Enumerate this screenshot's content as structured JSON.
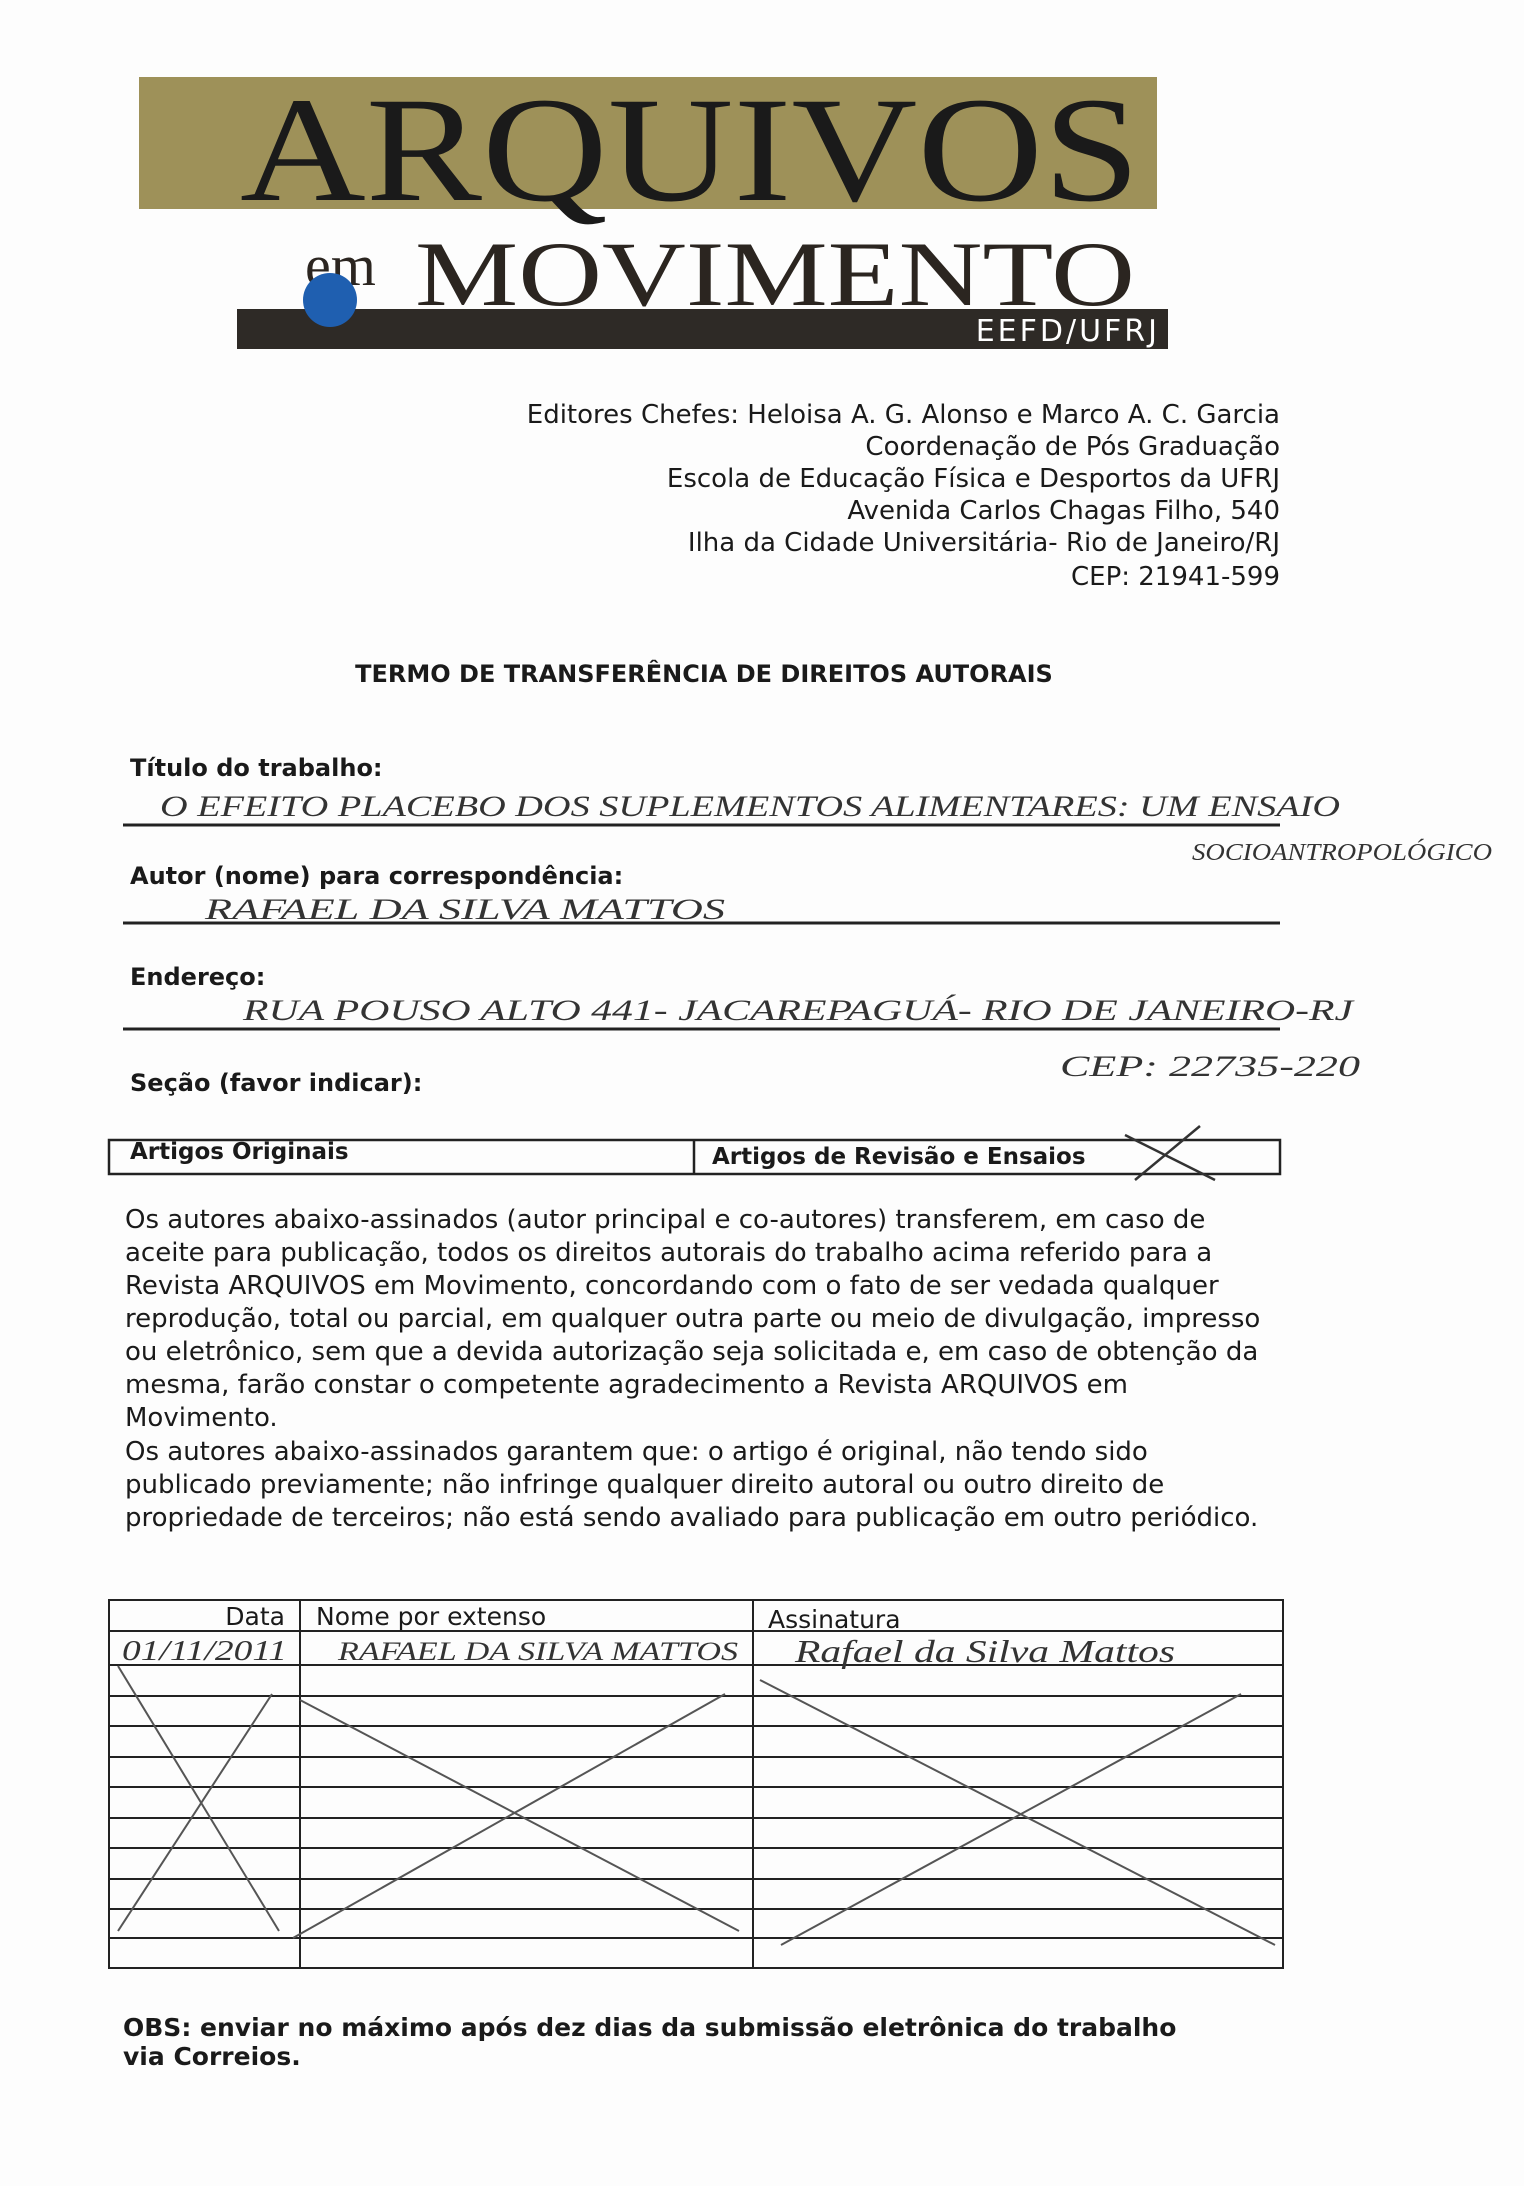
{
  "header": {
    "logo_title": "ARQUIVOS",
    "logo_prefix": "em",
    "logo_subtitle": "MOVIMENTO",
    "logo_band": "EEFD/UFRJ",
    "address_lines": [
      "Editores Chefes: Heloisa A. G. Alonso e Marco A. C. Garcia",
      "Coordenação de Pós Graduação",
      "Escola de Educação Física e Desportos da UFRJ",
      "Avenida Carlos Chagas Filho, 540",
      "Ilha da Cidade Universitária- Rio de Janeiro/RJ",
      "CEP: 21941-599"
    ]
  },
  "form": {
    "title": "TERMO DE TRANSFERÊNCIA DE DIREITOS AUTORAIS",
    "fields": [
      {
        "label": "Título do trabalho:",
        "value": [
          "O EFEITO PLACEBO DOS SUPLEMENTOS ALIMENTARES: UM ENSAIO",
          "SOCIOANTROPOLÓGICO"
        ]
      },
      {
        "label": "Autor (nome) para correspondência:",
        "value": [
          "RAFAEL DA SILVA MATTOS"
        ]
      },
      {
        "label": "Endereço:",
        "value": [
          "RUA POUSO ALTO 441- JACAREPAGUÁ- RIO DE JANEIRO-RJ",
          "CEP: 22735-220"
        ]
      }
    ],
    "section": {
      "label": "Seção (favor indicar):",
      "options": [
        "Artigos Originais",
        "Artigos de Revisão e Ensaios"
      ]
    }
  },
  "body": [
    "Os autores abaixo-assinados (autor principal e co-autores) transferem, em caso de aceite para publicação, todos os direitos autorais do trabalho acima referido para a Revista ARQUIVOS em Movimento, concordando com o fato de ser vedada qualquer reprodução, total ou parcial, em qualquer outra parte ou meio de divulgação, impresso ou eletrônico, sem que a devida autorização seja solicitada e, em caso de obtenção da mesma, farão constar o competente agradecimento a Revista ARQUIVOS em Movimento.",
    "Os autores abaixo-assinados garantem que: o artigo é original, não tendo sido publicado previamente; não infringe qualquer direito autoral ou outro direito de propriedade de terceiros; não está sendo avaliado para publicação em outro periódico."
  ],
  "signatures": {
    "headers": [
      "Data",
      "Nome por extenso",
      "Assinatura"
    ],
    "rows": [
      [
        "01/11/2011",
        "RAFAEL DA SILVA MATTOS",
        "Rafael da Silva Mattos"
      ]
    ]
  },
  "footer": "OBS: enviar no máximo após dez dias da submissão eletrônica do trabalho via Correios."
}
